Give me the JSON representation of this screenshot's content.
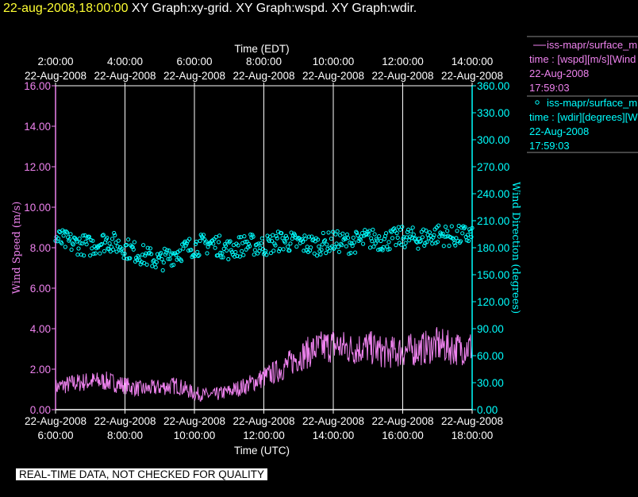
{
  "header": {
    "timestamp": "22-aug-2008,18:00:00",
    "graphs": "XY Graph:xy-grid.  XY Graph:wspd.  XY Graph:wdir."
  },
  "legend": {
    "wspd": {
      "line1": "iss-mapr/surface_m",
      "line2": "time : [wspd][m/s][Wind",
      "line3": "22-Aug-2008",
      "line4": "17:59:03"
    },
    "wdir": {
      "line1": "iss-mapr/surface_m",
      "line2": "time : [wdir][degrees][W",
      "line3": "22-Aug-2008",
      "line4": "17:59:03"
    }
  },
  "disclaimer": "REAL-TIME DATA, NOT CHECKED FOR QUALITY",
  "colors": {
    "wspd": "#ee82ee",
    "wdir": "#00ffff",
    "grid": "#ffffff"
  },
  "chart_data": {
    "type": "line",
    "x_top_label": "Time (EDT)",
    "x_bottom_label": "Time (UTC)",
    "y_left_label": "Wind Speed (m/s)",
    "y_right_label": "Wind Direction (degrees)",
    "x_top_ticks": [
      {
        "time": "2:00:00",
        "date": "22-Aug-2008"
      },
      {
        "time": "4:00:00",
        "date": "22-Aug-2008"
      },
      {
        "time": "6:00:00",
        "date": "22-Aug-2008"
      },
      {
        "time": "8:00:00",
        "date": "22-Aug-2008"
      },
      {
        "time": "10:00:00",
        "date": "22-Aug-2008"
      },
      {
        "time": "12:00:00",
        "date": "22-Aug-2008"
      },
      {
        "time": "14:00:00",
        "date": "22-Aug-2008"
      }
    ],
    "x_bottom_ticks": [
      {
        "date": "22-Aug-2008",
        "time": "6:00:00"
      },
      {
        "date": "22-Aug-2008",
        "time": "8:00:00"
      },
      {
        "date": "22-Aug-2008",
        "time": "10:00:00"
      },
      {
        "date": "22-Aug-2008",
        "time": "12:00:00"
      },
      {
        "date": "22-Aug-2008",
        "time": "14:00:00"
      },
      {
        "date": "22-Aug-2008",
        "time": "16:00:00"
      },
      {
        "date": "22-Aug-2008",
        "time": "18:00:00"
      }
    ],
    "xlim_utc_hours": [
      6,
      18
    ],
    "y_left_ticks": [
      "0.00",
      "2.00",
      "4.00",
      "6.00",
      "8.00",
      "10.00",
      "12.00",
      "14.00",
      "16.00"
    ],
    "y_right_ticks": [
      "0.00",
      "30.00",
      "60.00",
      "90.00",
      "120.00",
      "150.00",
      "180.00",
      "210.00",
      "240.00",
      "270.00",
      "300.00",
      "330.00",
      "360.00"
    ],
    "ylim_left": [
      0,
      16
    ],
    "ylim_right": [
      0,
      360
    ],
    "vertical_grid": true,
    "series": [
      {
        "name": "iss-mapr/surface_m",
        "axis": "left",
        "style": "line",
        "x_hours_utc": [
          6.0,
          6.5,
          7.0,
          7.5,
          8.0,
          8.5,
          9.0,
          9.5,
          10.0,
          10.5,
          11.0,
          11.5,
          12.0,
          12.5,
          13.0,
          13.5,
          14.0,
          14.5,
          15.0,
          15.5,
          16.0,
          16.5,
          17.0,
          17.5,
          18.0
        ],
        "values": [
          1.1,
          1.3,
          1.4,
          1.4,
          1.2,
          1.0,
          1.1,
          1.2,
          0.8,
          0.7,
          0.9,
          1.2,
          1.6,
          2.0,
          2.6,
          3.0,
          3.2,
          3.0,
          3.1,
          2.8,
          2.9,
          3.0,
          3.2,
          3.0,
          3.1
        ]
      },
      {
        "name": "iss-mapr/surface_m",
        "axis": "right",
        "style": "markers",
        "x_hours_utc": [
          6.0,
          6.5,
          7.0,
          7.5,
          8.0,
          8.5,
          9.0,
          9.5,
          10.0,
          10.5,
          11.0,
          11.5,
          12.0,
          12.5,
          13.0,
          13.5,
          14.0,
          14.5,
          15.0,
          15.5,
          16.0,
          16.5,
          17.0,
          17.5,
          18.0
        ],
        "values": [
          190,
          185,
          182,
          188,
          180,
          172,
          165,
          175,
          182,
          185,
          178,
          184,
          182,
          188,
          185,
          183,
          187,
          185,
          190,
          188,
          192,
          190,
          195,
          192,
          195
        ]
      }
    ]
  }
}
